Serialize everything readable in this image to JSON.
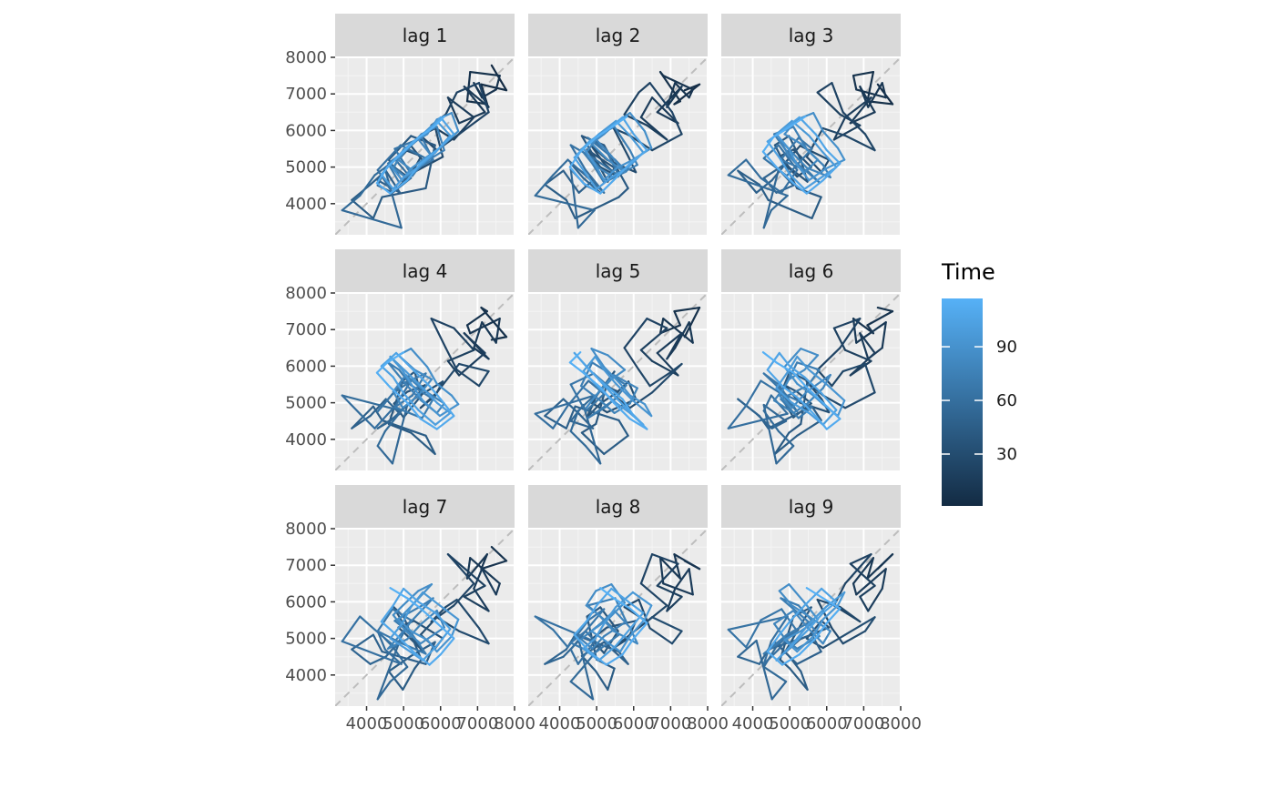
{
  "chart_data": {
    "type": "line",
    "subtype": "lag-plot-facets",
    "title": "",
    "xlabel": "",
    "ylabel": "",
    "facets": [
      "lag 1",
      "lag 2",
      "lag 3",
      "lag 4",
      "lag 5",
      "lag 6",
      "lag 7",
      "lag 8",
      "lag 9"
    ],
    "facet_layout": {
      "rows": 3,
      "cols": 3
    },
    "xlim": [
      3150,
      8000
    ],
    "ylim": [
      3150,
      8000
    ],
    "x_ticks": [
      4000,
      5000,
      6000,
      7000,
      8000
    ],
    "y_ticks": [
      4000,
      5000,
      6000,
      7000,
      8000
    ],
    "x_tick_labels": [
      "4000",
      "5000",
      "6000",
      "7000",
      "8000"
    ],
    "y_tick_labels": [
      "4000",
      "5000",
      "6000",
      "7000",
      "8000"
    ],
    "reference_line": "y = x (dashed grey)",
    "grid": true,
    "legend": {
      "title": "Time",
      "type": "colorbar",
      "position": "right",
      "range": [
        1,
        117
      ],
      "breaks": [
        30,
        60,
        90
      ],
      "break_labels": [
        "30",
        "60",
        "90"
      ],
      "color_low": "#132B43",
      "color_high": "#56B1F7"
    },
    "series_values": [
      7380,
      7780,
      7100,
      7260,
      6720,
      6800,
      7600,
      7500,
      7120,
      6900,
      7300,
      6640,
      7200,
      6500,
      6200,
      6900,
      6360,
      5750,
      6140,
      6440,
      7040,
      7300,
      6500,
      5900,
      5460,
      5860,
      6060,
      5280,
      4860,
      5200,
      5580,
      5100,
      4740,
      5000,
      5480,
      5300,
      4980,
      4600,
      5200,
      5850,
      5600,
      4420,
      4180,
      3600,
      4100,
      4520,
      4900,
      4300,
      4640,
      5100,
      4700,
      4300,
      4500,
      4940,
      3340,
      3820,
      4220,
      4780,
      5200,
      4700,
      4300,
      4920,
      5600,
      5240,
      4760,
      5500,
      5800,
      5200,
      4880,
      4580,
      5100,
      5480,
      5900,
      6100,
      5460,
      5060,
      4720,
      4980,
      5400,
      5760,
      5300,
      4860,
      5200,
      5640,
      5900,
      6300,
      6480,
      5980,
      5520,
      5200,
      4960,
      4640,
      5060,
      5520,
      5900,
      6260,
      5860,
      5400,
      5000,
      4720,
      4400,
      4800,
      5260,
      5700,
      6000,
      6360,
      5900,
      5460,
      5100,
      4640,
      4280,
      4560,
      5000,
      5420,
      5820,
      6100,
      6380
    ]
  }
}
